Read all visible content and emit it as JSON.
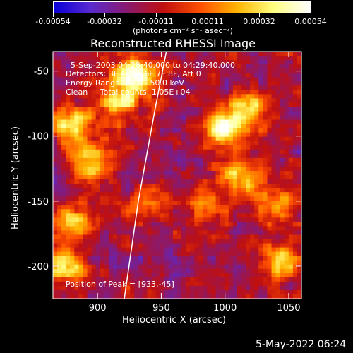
{
  "colorbar": {
    "ticks": [
      "-0.00054",
      "-0.00032",
      "-0.00011",
      "0.00011",
      "0.00032",
      "0.00054"
    ],
    "units_label": "(photons cm⁻² s⁻¹ asec⁻²)",
    "colors": [
      "#0a00d8",
      "#5a2bd0",
      "#8a1a70",
      "#c01010",
      "#ff5000",
      "#ffb400",
      "#ffff80",
      "#ffffff"
    ]
  },
  "chart_data": {
    "type": "heatmap",
    "title": "Reconstructed RHESSI Image",
    "xlabel": "Heliocentric X (arcsec)",
    "ylabel": "Heliocentric Y (arcsec)",
    "xlim": [
      865,
      1060
    ],
    "ylim": [
      -225,
      -35
    ],
    "x_ticks": [
      900,
      950,
      1000,
      1050
    ],
    "y_ticks": [
      -50,
      -100,
      -150,
      -200
    ],
    "annotations": [
      "5-Sep-2003 04:28:40.000 to 04:29:40.000",
      "Detectors: 3F 4F 5F 6F 7F 8F, Att 0",
      "Energy Range: 25.0 - 50.0 keV",
      "Clean     Total counts: 1.05E+04",
      "Position of Peak = [933,-45]"
    ],
    "peak": [
      933,
      -45
    ],
    "bright_regions": [
      {
        "x": 880,
        "y": -90,
        "intensity": 0.8
      },
      {
        "x": 895,
        "y": -120,
        "intensity": 0.75
      },
      {
        "x": 930,
        "y": -55,
        "intensity": 1.0
      },
      {
        "x": 915,
        "y": -75,
        "intensity": 0.8
      },
      {
        "x": 1000,
        "y": -95,
        "intensity": 0.95
      },
      {
        "x": 1020,
        "y": -80,
        "intensity": 0.7
      },
      {
        "x": 1010,
        "y": -130,
        "intensity": 0.75
      },
      {
        "x": 985,
        "y": -155,
        "intensity": 0.6
      },
      {
        "x": 880,
        "y": -165,
        "intensity": 0.7
      },
      {
        "x": 875,
        "y": -200,
        "intensity": 0.8
      },
      {
        "x": 1045,
        "y": -195,
        "intensity": 0.75
      },
      {
        "x": 1040,
        "y": -150,
        "intensity": 0.55
      },
      {
        "x": 940,
        "y": -150,
        "intensity": 0.5
      }
    ]
  },
  "limb_curve": [
    [
      921,
      -225
    ],
    [
      932,
      -150
    ],
    [
      945,
      -80
    ],
    [
      954,
      -35
    ]
  ],
  "footer": {
    "timestamp": "5-May-2022 06:24"
  }
}
